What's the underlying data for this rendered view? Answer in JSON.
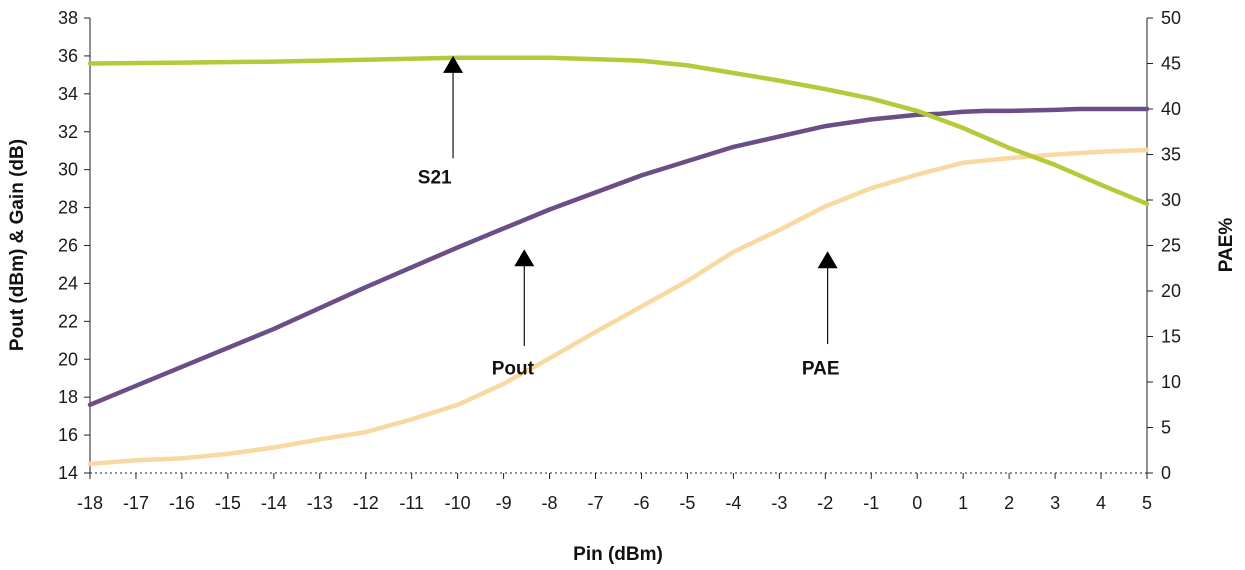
{
  "chart_data": {
    "type": "line",
    "xlabel": "Pin (dBm)",
    "ylabel_left": "Pout (dBm) & Gain (dB)",
    "ylabel_right": "PAE%",
    "xlim": [
      -18,
      5
    ],
    "ylim_left": [
      14,
      38
    ],
    "ylim_right": [
      0,
      50
    ],
    "x_ticks": [
      -18,
      -17,
      -16,
      -15,
      -14,
      -13,
      -12,
      -11,
      -10,
      -9,
      -8,
      -7,
      -6,
      -5,
      -4,
      -3,
      -2,
      -1,
      0,
      1,
      2,
      3,
      4,
      5
    ],
    "y_ticks_left": [
      14,
      16,
      18,
      20,
      22,
      24,
      26,
      28,
      30,
      32,
      34,
      36,
      38
    ],
    "y_ticks_right": [
      0,
      5,
      10,
      15,
      20,
      25,
      30,
      35,
      40,
      45,
      50
    ],
    "grid": false,
    "series": [
      {
        "name": "S21",
        "axis": "left",
        "color": "#b5c93a",
        "x": [
          -18,
          -16,
          -14,
          -12,
          -10,
          -8,
          -6,
          -5,
          -4,
          -3,
          -2,
          -1,
          0,
          1,
          2,
          3,
          4,
          5
        ],
        "y": [
          35.6,
          35.65,
          35.7,
          35.8,
          35.9,
          35.9,
          35.75,
          35.5,
          35.1,
          34.7,
          34.25,
          33.75,
          33.1,
          32.2,
          31.15,
          30.25,
          29.2,
          28.2
        ]
      },
      {
        "name": "Pout",
        "axis": "left",
        "color": "#6b4e85",
        "x": [
          -18,
          -16,
          -14,
          -12,
          -10,
          -8,
          -6,
          -4,
          -2,
          -1,
          0,
          0.5,
          1,
          1.5,
          2,
          3,
          3.5,
          4,
          5
        ],
        "y": [
          17.6,
          19.6,
          21.6,
          23.8,
          25.9,
          27.9,
          29.7,
          31.2,
          32.3,
          32.65,
          32.9,
          32.95,
          33.05,
          33.1,
          33.1,
          33.15,
          33.2,
          33.2,
          33.2
        ]
      },
      {
        "name": "PAE",
        "axis": "right",
        "color": "#f8d9a2",
        "x": [
          -18,
          -17,
          -16,
          -15,
          -14,
          -13,
          -12,
          -11,
          -10,
          -9,
          -8,
          -7,
          -6,
          -5,
          -4,
          -3,
          -2,
          -1,
          0,
          1,
          2,
          3,
          4,
          5
        ],
        "y": [
          1.0,
          1.4,
          1.6,
          2.1,
          2.8,
          3.7,
          4.5,
          5.9,
          7.5,
          9.8,
          12.6,
          15.5,
          18.3,
          21.1,
          24.3,
          26.7,
          29.3,
          31.3,
          32.8,
          34.1,
          34.6,
          35.0,
          35.3,
          35.5
        ]
      }
    ],
    "annotations": [
      {
        "label": "S21",
        "arrow_x": -10.1,
        "arrow_top_y": 36.0,
        "arrow_bottom_y": 30.6,
        "label_x": -10.5,
        "label_y": 29.6,
        "axis": "left"
      },
      {
        "label": "Pout",
        "arrow_x": -8.55,
        "arrow_top_y": 25.8,
        "arrow_bottom_y": 20.7,
        "label_x": -8.8,
        "label_y": 19.5,
        "axis": "left"
      },
      {
        "label": "PAE",
        "arrow_x": -1.95,
        "arrow_top_y": 25.7,
        "arrow_bottom_y": 20.8,
        "label_x": -2.1,
        "label_y": 19.5,
        "axis": "left"
      }
    ]
  }
}
